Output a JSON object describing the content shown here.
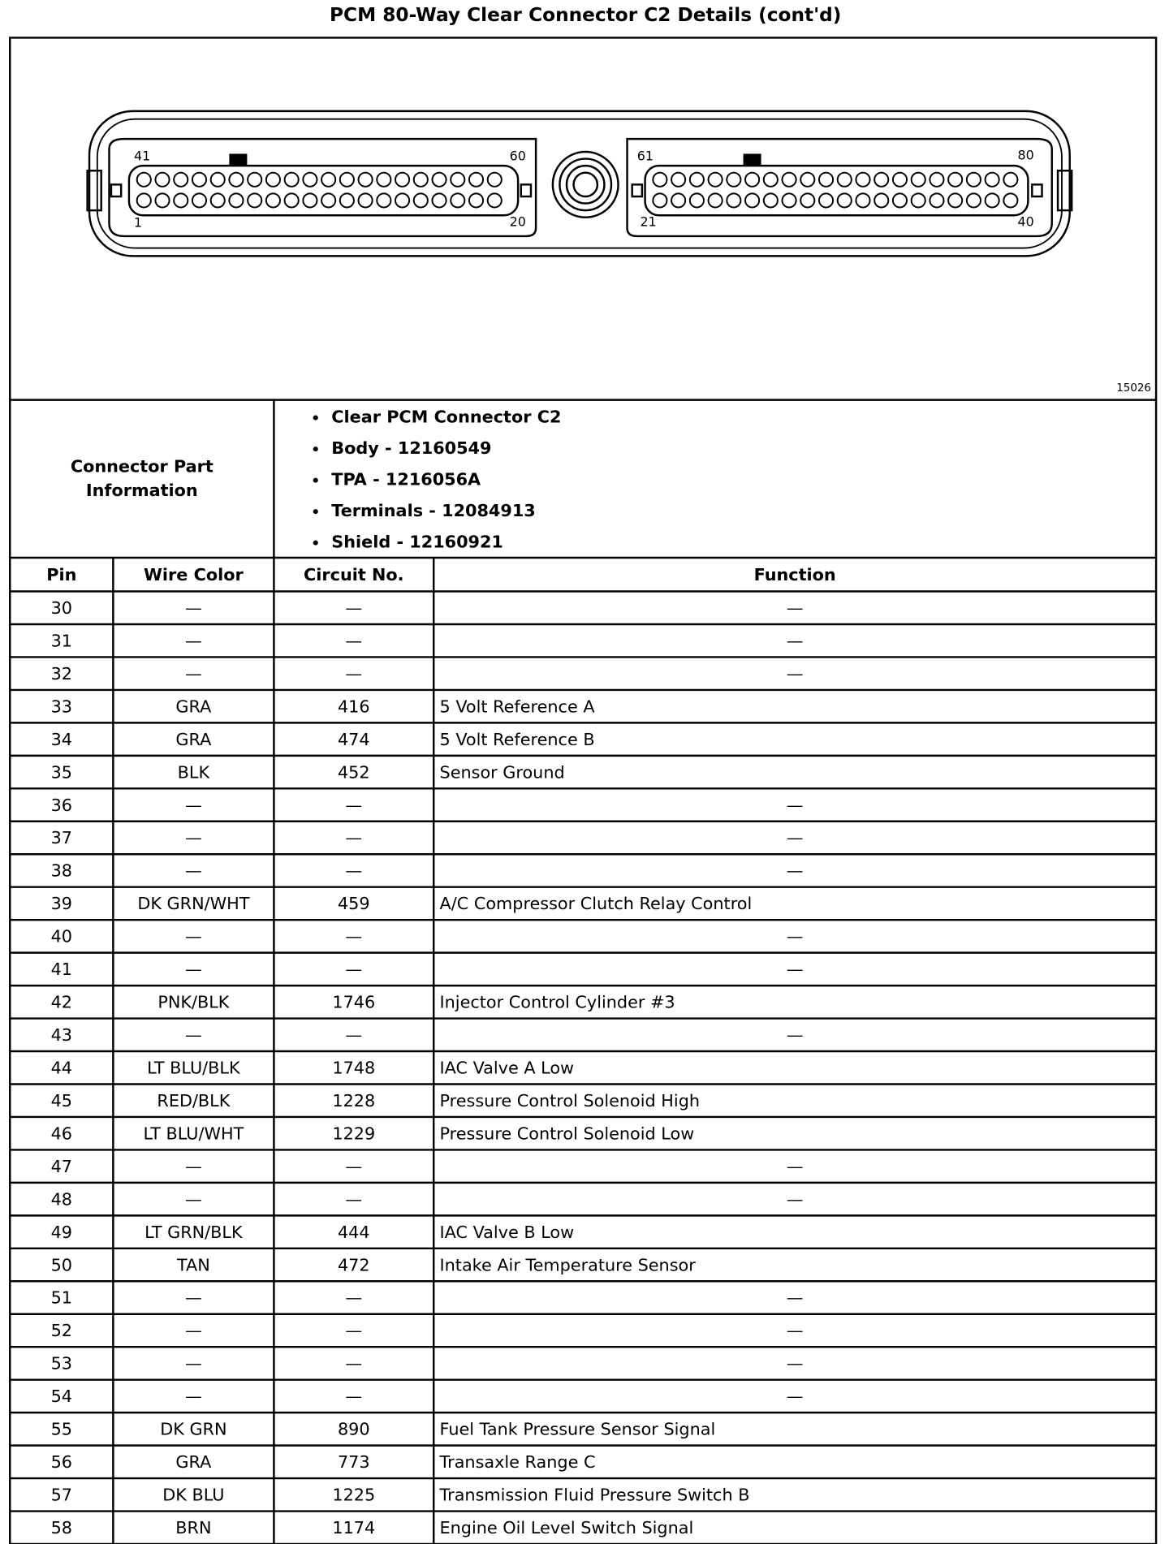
{
  "title": "PCM 80-Way Clear Connector C2 Details (cont'd)",
  "diagram": {
    "pin_labels": [
      "41",
      "60",
      "1",
      "20",
      "61",
      "80",
      "21",
      "40"
    ],
    "figure_id": "15026"
  },
  "connector_info": {
    "label_lines": [
      "Connector Part",
      "Information"
    ],
    "items": [
      "Clear PCM Connector C2",
      "Body - 12160549",
      "TPA - 1216056A",
      "Terminals - 12084913",
      "Shield - 12160921"
    ]
  },
  "table": {
    "header": [
      "Pin",
      "Wire Color",
      "Circuit No.",
      "Function"
    ],
    "rows": [
      [
        "30",
        "—",
        "—",
        "—"
      ],
      [
        "31",
        "—",
        "—",
        "—"
      ],
      [
        "32",
        "—",
        "—",
        "—"
      ],
      [
        "33",
        "GRA",
        "416",
        "5 Volt Reference A"
      ],
      [
        "34",
        "GRA",
        "474",
        "5 Volt Reference B"
      ],
      [
        "35",
        "BLK",
        "452",
        "Sensor Ground"
      ],
      [
        "36",
        "—",
        "—",
        "—"
      ],
      [
        "37",
        "—",
        "—",
        "—"
      ],
      [
        "38",
        "—",
        "—",
        "—"
      ],
      [
        "39",
        "DK GRN/WHT",
        "459",
        "A/C Compressor Clutch Relay Control"
      ],
      [
        "40",
        "—",
        "—",
        "—"
      ],
      [
        "41",
        "—",
        "—",
        "—"
      ],
      [
        "42",
        "PNK/BLK",
        "1746",
        "Injector Control Cylinder #3"
      ],
      [
        "43",
        "—",
        "—",
        "—"
      ],
      [
        "44",
        "LT BLU/BLK",
        "1748",
        "IAC Valve A Low"
      ],
      [
        "45",
        "RED/BLK",
        "1228",
        "Pressure Control Solenoid High"
      ],
      [
        "46",
        "LT BLU/WHT",
        "1229",
        "Pressure Control Solenoid Low"
      ],
      [
        "47",
        "—",
        "—",
        "—"
      ],
      [
        "48",
        "—",
        "—",
        "—"
      ],
      [
        "49",
        "LT GRN/BLK",
        "444",
        "IAC Valve B Low"
      ],
      [
        "50",
        "TAN",
        "472",
        "Intake Air Temperature Sensor"
      ],
      [
        "51",
        "—",
        "—",
        "—"
      ],
      [
        "52",
        "—",
        "—",
        "—"
      ],
      [
        "53",
        "—",
        "—",
        "—"
      ],
      [
        "54",
        "—",
        "—",
        "—"
      ],
      [
        "55",
        "DK GRN",
        "890",
        "Fuel Tank Pressure Sensor Signal"
      ],
      [
        "56",
        "GRA",
        "773",
        "Transaxle Range C"
      ],
      [
        "57",
        "DK BLU",
        "1225",
        "Transmission Fluid Pressure Switch B"
      ],
      [
        "58",
        "BRN",
        "1174",
        "Engine Oil Level Switch Signal"
      ]
    ]
  }
}
